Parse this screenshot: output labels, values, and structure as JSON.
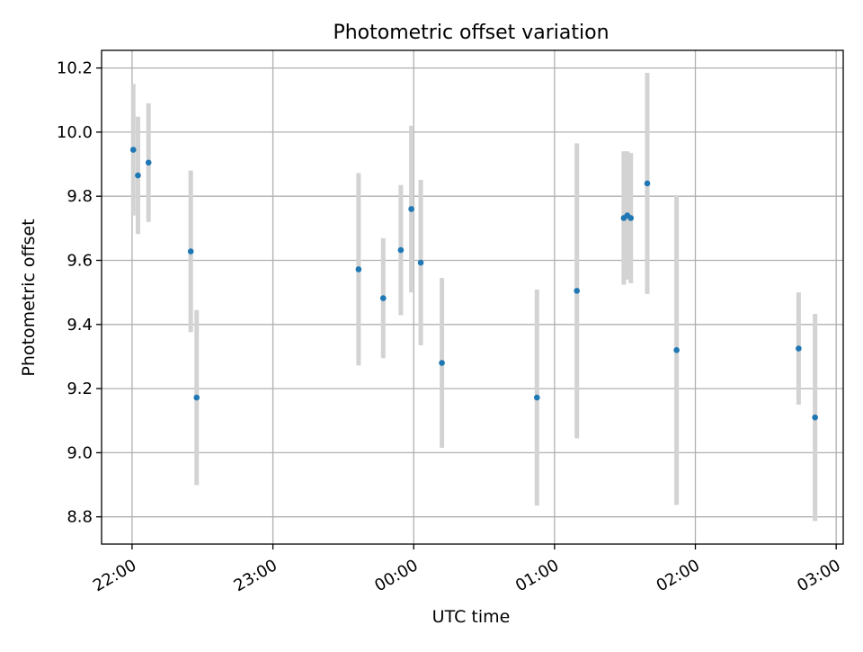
{
  "chart_data": {
    "type": "scatter",
    "title": "Photometric offset variation",
    "xlabel": "UTC time",
    "ylabel": "Photometric offset",
    "x_axis": {
      "ticks": [
        0,
        60,
        120,
        180,
        240,
        300
      ],
      "tick_labels": [
        "22:00",
        "23:00",
        "00:00",
        "01:00",
        "02:00",
        "03:00"
      ],
      "xlim": [
        -13,
        303
      ]
    },
    "y_axis": {
      "ticks": [
        8.8,
        9.0,
        9.2,
        9.4,
        9.6,
        9.8,
        10.0,
        10.2
      ],
      "tick_labels": [
        "8.8",
        "9.0",
        "9.2",
        "9.4",
        "9.6",
        "9.8",
        "10.0",
        "10.2"
      ],
      "ylim": [
        8.715,
        10.255
      ]
    },
    "grid": true,
    "colors": {
      "points": "#1f77b4",
      "errorbars": "#d3d3d3",
      "grid": "#b0b0b0"
    },
    "points": [
      {
        "x": 0.5,
        "y": 9.945,
        "err": 0.205
      },
      {
        "x": 2.5,
        "y": 9.865,
        "err": 0.183
      },
      {
        "x": 7,
        "y": 9.905,
        "err": 0.185
      },
      {
        "x": 25,
        "y": 9.628,
        "err": 0.252
      },
      {
        "x": 27.5,
        "y": 9.172,
        "err": 0.273
      },
      {
        "x": 96.5,
        "y": 9.572,
        "err": 0.3
      },
      {
        "x": 107,
        "y": 9.482,
        "err": 0.187
      },
      {
        "x": 114.5,
        "y": 9.632,
        "err": 0.203
      },
      {
        "x": 119,
        "y": 9.76,
        "err": 0.26
      },
      {
        "x": 123,
        "y": 9.593,
        "err": 0.258
      },
      {
        "x": 132,
        "y": 9.28,
        "err": 0.265
      },
      {
        "x": 172.5,
        "y": 9.172,
        "err": 0.337
      },
      {
        "x": 189.5,
        "y": 9.505,
        "err": 0.46
      },
      {
        "x": 209.5,
        "y": 9.732,
        "err": 0.208
      },
      {
        "x": 211,
        "y": 9.74,
        "err": 0.2
      },
      {
        "x": 212.5,
        "y": 9.732,
        "err": 0.203
      },
      {
        "x": 219.5,
        "y": 9.84,
        "err": 0.345
      },
      {
        "x": 232,
        "y": 9.32,
        "err": 0.483
      },
      {
        "x": 284,
        "y": 9.325,
        "err": 0.175
      },
      {
        "x": 291,
        "y": 9.11,
        "err": 0.323
      }
    ]
  }
}
